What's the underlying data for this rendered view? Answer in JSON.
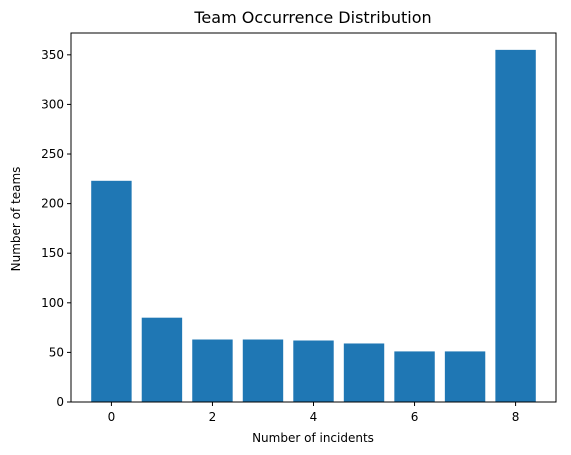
{
  "chart_data": {
    "type": "bar",
    "title": "Team Occurrence Distribution",
    "xlabel": "Number of incidents",
    "ylabel": "Number of teams",
    "x": [
      0,
      1,
      2,
      3,
      4,
      5,
      6,
      7,
      8
    ],
    "values": [
      223,
      85,
      63,
      63,
      62,
      59,
      51,
      51,
      355
    ],
    "xlim": [
      -0.8,
      8.8
    ],
    "ylim": [
      0,
      372
    ],
    "xticks": [
      0,
      2,
      4,
      6,
      8
    ],
    "yticks": [
      0,
      50,
      100,
      150,
      200,
      250,
      300,
      350
    ],
    "bar_color": "#1f77b4",
    "grid": false
  }
}
